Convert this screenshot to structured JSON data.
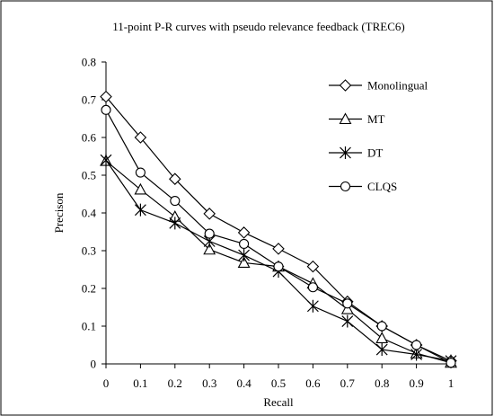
{
  "chart_data": {
    "type": "line",
    "title": "11-point P-R curves with pseudo relevance feedback (TREC6)",
    "xlabel": "Recall",
    "ylabel": "Precison",
    "x": [
      0,
      0.1,
      0.2,
      0.3,
      0.4,
      0.5,
      0.6,
      0.7,
      0.8,
      0.9,
      1
    ],
    "x_tick_labels": [
      "0",
      "0.1",
      "0.2",
      "0.3",
      "0.4",
      "0.5",
      "0.6",
      "0.7",
      "0.8",
      "0.9",
      "1"
    ],
    "y_ticks": [
      0,
      0.1,
      0.2,
      0.3,
      0.4,
      0.5,
      0.6,
      0.7,
      0.8
    ],
    "y_tick_labels": [
      "0",
      "0.1",
      "0.2",
      "0.3",
      "0.4",
      "0.5",
      "0.6",
      "0.7",
      "0.8"
    ],
    "xlim": [
      0,
      1
    ],
    "ylim": [
      0,
      0.8
    ],
    "grid": false,
    "legend_position": "top-right",
    "series": [
      {
        "name": "Monolingual",
        "marker": "diamond",
        "values": [
          0.708,
          0.6,
          0.49,
          0.398,
          0.348,
          0.305,
          0.258,
          0.165,
          0.1,
          0.05,
          0.008
        ]
      },
      {
        "name": "MT",
        "marker": "triangle",
        "values": [
          0.538,
          0.462,
          0.39,
          0.303,
          0.268,
          0.258,
          0.213,
          0.145,
          0.068,
          0.028,
          0.003
        ]
      },
      {
        "name": "DT",
        "marker": "star",
        "values": [
          0.54,
          0.408,
          0.373,
          0.325,
          0.288,
          0.245,
          0.153,
          0.113,
          0.038,
          0.025,
          0.008
        ]
      },
      {
        "name": "CLQS",
        "marker": "circle",
        "values": [
          0.673,
          0.507,
          0.432,
          0.345,
          0.318,
          0.258,
          0.203,
          0.16,
          0.1,
          0.05,
          0.003
        ]
      }
    ]
  }
}
